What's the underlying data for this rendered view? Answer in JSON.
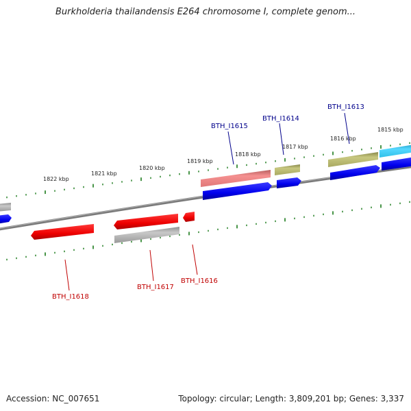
{
  "title": "Burkholderia thailandensis E264 chromosome I, complete genom...",
  "footer": {
    "accession": "Accession: NC_007651",
    "summary": "Topology: circular; Length: 3,809,201 bp; Genes: 3,337"
  },
  "kbp_ticks": [
    "1822 kbp",
    "1821 kbp",
    "1820 kbp",
    "1819 kbp",
    "1818 kbp",
    "1817 kbp",
    "1816 kbp",
    "1815 kbp"
  ],
  "gene_labels": {
    "forward": [
      "BTH_I1615",
      "BTH_I1614",
      "BTH_I1613"
    ],
    "reverse": [
      "BTH_I1618",
      "BTH_I1617",
      "BTH_I1616"
    ]
  },
  "colors": {
    "forward_label": "#00008b",
    "reverse_label": "#c00000",
    "tick": "#1a7a1a",
    "backbone": "#8a8a8a",
    "cds_forward": "#0000ee",
    "cds_reverse": "#ee0000",
    "gene_gray": "#b8b8b8",
    "gene_pink": "#f08080",
    "gene_olive": "#b5b56a",
    "gene_cyan": "#33ccf0"
  }
}
